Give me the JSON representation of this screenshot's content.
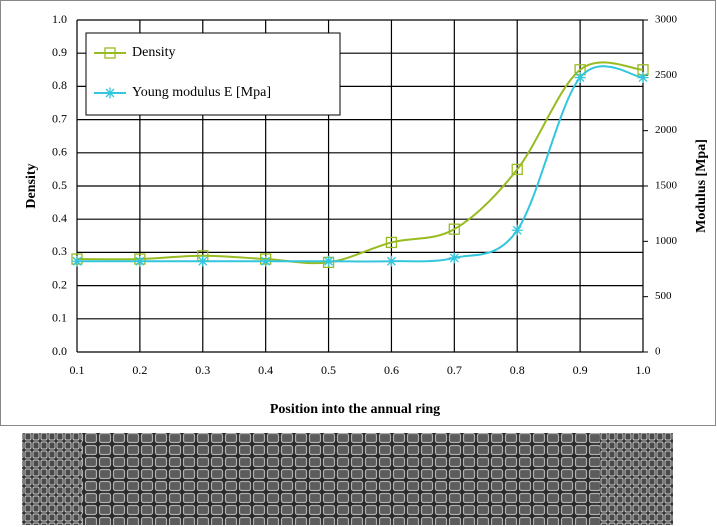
{
  "chart_data": {
    "type": "line",
    "x_label": "Position into the annual ring",
    "y_label": "Density",
    "y2_label": "Modulus  [Mpa]",
    "x": [
      0.1,
      0.2,
      0.3,
      0.4,
      0.5,
      0.6,
      0.7,
      0.8,
      0.9,
      1.0
    ],
    "xlim": [
      0.1,
      1.0
    ],
    "xticks": [
      0.1,
      0.2,
      0.3,
      0.4,
      0.5,
      0.6,
      0.7,
      0.8,
      0.9,
      {
        "value": 1.0,
        "label": "1.0"
      }
    ],
    "ylim": [
      0,
      1
    ],
    "yticks": [
      {
        "value": 0,
        "label": "0.0"
      },
      0.1,
      0.2,
      0.3,
      0.4,
      0.5,
      0.6,
      0.7,
      0.8,
      0.9,
      {
        "value": 1,
        "label": "1.0"
      }
    ],
    "y2lim": [
      0,
      3000
    ],
    "y2ticks": [
      0,
      500,
      1000,
      1500,
      2000,
      2500,
      3000
    ],
    "grid": true,
    "legend": "upper left",
    "series": [
      {
        "name": "Density",
        "color": "#99bb22",
        "marker": "square",
        "values": [
          0.28,
          0.28,
          0.29,
          0.28,
          0.27,
          0.33,
          0.37,
          0.55,
          0.85,
          0.85
        ]
      },
      {
        "name": "Young modulus E [Mpa]",
        "color": "#33c6dd",
        "marker": "asterisk",
        "axis": "y2",
        "values": [
          820,
          820,
          820,
          820,
          820,
          820,
          850,
          1100,
          2480,
          2480
        ]
      }
    ]
  }
}
